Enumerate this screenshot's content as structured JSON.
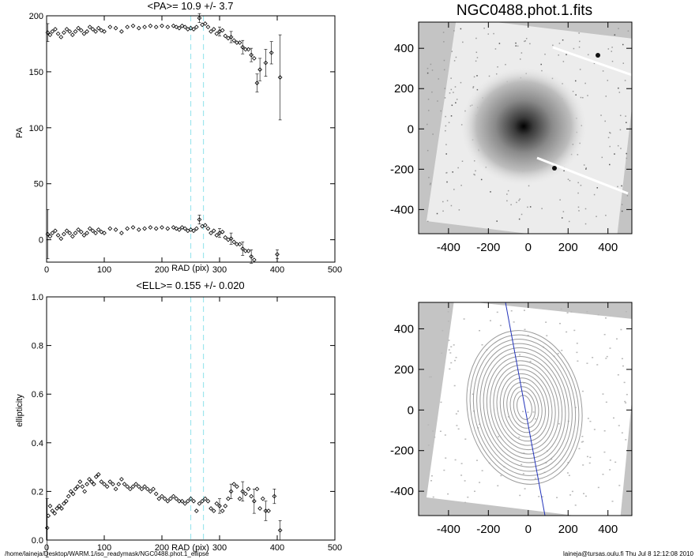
{
  "chart_data": [
    {
      "type": "scatter",
      "panel": "pa-profile",
      "title": "<PA>=  10.9 +/-   3.7",
      "xlabel": "RAD (pix)",
      "ylabel": "PA",
      "xlim": [
        0,
        500
      ],
      "ylim": [
        -20,
        200
      ],
      "xticks": [
        0,
        100,
        200,
        300,
        400,
        500
      ],
      "yticks": [
        0,
        50,
        100,
        150,
        200
      ],
      "reference_lines_x": [
        250,
        272
      ],
      "series": [
        {
          "points": [
            [
              2,
              185
            ],
            [
              6,
              183
            ],
            [
              10,
              186
            ],
            [
              15,
              188
            ],
            [
              20,
              184
            ],
            [
              25,
              181
            ],
            [
              30,
              185
            ],
            [
              35,
              188
            ],
            [
              40,
              186
            ],
            [
              45,
              183
            ],
            [
              50,
              186
            ],
            [
              55,
              189
            ],
            [
              60,
              187
            ],
            [
              65,
              184
            ],
            [
              70,
              186
            ],
            [
              75,
              190
            ],
            [
              80,
              188
            ],
            [
              85,
              186
            ],
            [
              90,
              189
            ],
            [
              95,
              187
            ],
            [
              100,
              186
            ],
            [
              110,
              190
            ],
            [
              120,
              189
            ],
            [
              130,
              186
            ],
            [
              140,
              190
            ],
            [
              150,
              191
            ],
            [
              160,
              189
            ],
            [
              170,
              190
            ],
            [
              180,
              191
            ],
            [
              190,
              190
            ],
            [
              200,
              191
            ],
            [
              210,
              190
            ],
            [
              220,
              191
            ],
            [
              225,
              190
            ],
            [
              230,
              189
            ],
            [
              235,
              191
            ],
            [
              240,
              190
            ],
            [
              245,
              188
            ],
            [
              250,
              189
            ],
            [
              255,
              188
            ],
            [
              260,
              190
            ],
            [
              265,
              198
            ],
            [
              270,
              192
            ],
            [
              275,
              193
            ],
            [
              280,
              190
            ],
            [
              285,
              186
            ],
            [
              290,
              188
            ],
            [
              295,
              184
            ],
            [
              300,
              186
            ],
            [
              305,
              187
            ],
            [
              310,
              182
            ],
            [
              315,
              180
            ],
            [
              320,
              181
            ],
            [
              325,
              178
            ],
            [
              330,
              176
            ],
            [
              335,
              176
            ],
            [
              340,
              172
            ],
            [
              345,
              170
            ],
            [
              350,
              170
            ],
            [
              355,
              165
            ],
            [
              360,
              162
            ],
            [
              365,
              140
            ],
            [
              370,
              152
            ],
            [
              380,
              158
            ],
            [
              390,
              167
            ],
            [
              405,
              145
            ]
          ],
          "error": [
            [
              2,
              8
            ],
            [
              265,
              4
            ],
            [
              300,
              4
            ],
            [
              320,
              5
            ],
            [
              340,
              6
            ],
            [
              355,
              6
            ],
            [
              365,
              8
            ],
            [
              370,
              10
            ],
            [
              380,
              12
            ],
            [
              390,
              10
            ],
            [
              405,
              38
            ]
          ]
        },
        {
          "points": [
            [
              2,
              5
            ],
            [
              6,
              3
            ],
            [
              10,
              6
            ],
            [
              15,
              8
            ],
            [
              20,
              4
            ],
            [
              25,
              1
            ],
            [
              30,
              5
            ],
            [
              35,
              8
            ],
            [
              40,
              6
            ],
            [
              45,
              3
            ],
            [
              50,
              6
            ],
            [
              55,
              9
            ],
            [
              60,
              7
            ],
            [
              65,
              4
            ],
            [
              70,
              6
            ],
            [
              75,
              10
            ],
            [
              80,
              8
            ],
            [
              85,
              6
            ],
            [
              90,
              9
            ],
            [
              95,
              7
            ],
            [
              100,
              6
            ],
            [
              110,
              10
            ],
            [
              120,
              9
            ],
            [
              130,
              6
            ],
            [
              140,
              10
            ],
            [
              150,
              11
            ],
            [
              160,
              9
            ],
            [
              170,
              10
            ],
            [
              180,
              11
            ],
            [
              190,
              10
            ],
            [
              200,
              11
            ],
            [
              210,
              10
            ],
            [
              220,
              11
            ],
            [
              225,
              10
            ],
            [
              230,
              9
            ],
            [
              235,
              11
            ],
            [
              240,
              10
            ],
            [
              245,
              8
            ],
            [
              250,
              9
            ],
            [
              255,
              8
            ],
            [
              260,
              10
            ],
            [
              265,
              18
            ],
            [
              270,
              12
            ],
            [
              275,
              13
            ],
            [
              280,
              10
            ],
            [
              285,
              6
            ],
            [
              290,
              8
            ],
            [
              295,
              4
            ],
            [
              300,
              6
            ],
            [
              305,
              7
            ],
            [
              310,
              2
            ],
            [
              315,
              0
            ],
            [
              320,
              1
            ],
            [
              325,
              -2
            ],
            [
              330,
              -4
            ],
            [
              335,
              -4
            ],
            [
              340,
              -8
            ],
            [
              345,
              -10
            ],
            [
              350,
              -10
            ],
            [
              355,
              -15
            ],
            [
              360,
              -18
            ],
            [
              400,
              -13
            ]
          ],
          "error": [
            [
              2,
              22
            ],
            [
              265,
              4
            ],
            [
              300,
              4
            ],
            [
              320,
              5
            ],
            [
              340,
              6
            ],
            [
              355,
              6
            ],
            [
              400,
              4
            ]
          ]
        }
      ]
    },
    {
      "type": "scatter",
      "panel": "ellipticity-profile",
      "title": "<ELL>= 0.155 +/-  0.020",
      "xlabel": "RAD (pix)",
      "ylabel": "ellipticity",
      "xlim": [
        0,
        500
      ],
      "ylim": [
        0.0,
        1.0
      ],
      "xticks": [
        0,
        100,
        200,
        300,
        400,
        500
      ],
      "yticks": [
        "0.0",
        "0.2",
        "0.4",
        "0.6",
        "0.8",
        "1.0"
      ],
      "reference_lines_x": [
        250,
        272
      ],
      "series": [
        {
          "points": [
            [
              1,
              0.05
            ],
            [
              3,
              0.1
            ],
            [
              6,
              0.14
            ],
            [
              10,
              0.12
            ],
            [
              14,
              0.11
            ],
            [
              18,
              0.13
            ],
            [
              22,
              0.14
            ],
            [
              26,
              0.13
            ],
            [
              30,
              0.15
            ],
            [
              34,
              0.16
            ],
            [
              38,
              0.18
            ],
            [
              42,
              0.2
            ],
            [
              46,
              0.19
            ],
            [
              50,
              0.21
            ],
            [
              54,
              0.22
            ],
            [
              58,
              0.24
            ],
            [
              62,
              0.22
            ],
            [
              66,
              0.2
            ],
            [
              70,
              0.23
            ],
            [
              74,
              0.25
            ],
            [
              78,
              0.24
            ],
            [
              82,
              0.23
            ],
            [
              86,
              0.26
            ],
            [
              90,
              0.27
            ],
            [
              95,
              0.24
            ],
            [
              100,
              0.23
            ],
            [
              105,
              0.22
            ],
            [
              110,
              0.24
            ],
            [
              115,
              0.23
            ],
            [
              120,
              0.21
            ],
            [
              125,
              0.23
            ],
            [
              130,
              0.25
            ],
            [
              135,
              0.23
            ],
            [
              140,
              0.22
            ],
            [
              145,
              0.21
            ],
            [
              150,
              0.22
            ],
            [
              155,
              0.23
            ],
            [
              160,
              0.22
            ],
            [
              165,
              0.21
            ],
            [
              170,
              0.22
            ],
            [
              175,
              0.21
            ],
            [
              180,
              0.2
            ],
            [
              185,
              0.21
            ],
            [
              190,
              0.19
            ],
            [
              195,
              0.17
            ],
            [
              200,
              0.18
            ],
            [
              205,
              0.17
            ],
            [
              210,
              0.16
            ],
            [
              215,
              0.17
            ],
            [
              220,
              0.18
            ],
            [
              225,
              0.17
            ],
            [
              230,
              0.16
            ],
            [
              235,
              0.16
            ],
            [
              240,
              0.15
            ],
            [
              245,
              0.16
            ],
            [
              250,
              0.17
            ],
            [
              255,
              0.16
            ],
            [
              260,
              0.12
            ],
            [
              265,
              0.15
            ],
            [
              270,
              0.16
            ],
            [
              275,
              0.17
            ],
            [
              280,
              0.16
            ],
            [
              285,
              0.13
            ],
            [
              290,
              0.12
            ],
            [
              295,
              0.15
            ],
            [
              300,
              0.14
            ],
            [
              305,
              0.12
            ],
            [
              310,
              0.14
            ],
            [
              315,
              0.17
            ],
            [
              320,
              0.2
            ],
            [
              325,
              0.23
            ],
            [
              330,
              0.22
            ],
            [
              335,
              0.17
            ],
            [
              340,
              0.2
            ],
            [
              345,
              0.19
            ],
            [
              350,
              0.21
            ],
            [
              355,
              0.18
            ],
            [
              360,
              0.16
            ],
            [
              365,
              0.21
            ],
            [
              370,
              0.13
            ],
            [
              375,
              0.17
            ],
            [
              380,
              0.12
            ],
            [
              385,
              0.12
            ],
            [
              395,
              0.18
            ],
            [
              405,
              0.04
            ]
          ],
          "error": [
            [
              1,
              0.12
            ],
            [
              300,
              0.03
            ],
            [
              320,
              0.03
            ],
            [
              340,
              0.04
            ],
            [
              360,
              0.05
            ],
            [
              380,
              0.04
            ],
            [
              395,
              0.03
            ],
            [
              405,
              0.04
            ]
          ]
        }
      ]
    },
    {
      "type": "heatmap",
      "panel": "galaxy-image",
      "title": "NGC0488.phot.1.fits",
      "xlim": [
        -550,
        520
      ],
      "ylim": [
        -520,
        530
      ],
      "xticks": [
        "-400",
        "-200",
        "0",
        "200",
        "400"
      ],
      "yticks": [
        "400",
        "200",
        "0",
        "-200",
        "-400"
      ],
      "colormap": "inverted-gray"
    },
    {
      "type": "heatmap",
      "panel": "isophote-overlay",
      "title": "",
      "xlim": [
        -550,
        520
      ],
      "ylim": [
        -520,
        530
      ],
      "xticks": [
        "-400",
        "-200",
        "0",
        "200",
        "400"
      ],
      "yticks": [
        "400",
        "200",
        "0",
        "-200",
        "-400"
      ],
      "overlay": "fitted isophote ellipses and position-angle line"
    }
  ],
  "footer": {
    "path": "/home/laineja/Desktop/WARM.1/iso_readymask/NGC0488.phot.1_ellipse",
    "stamp": "laineja@tursas.oulu.fi  Thu Jul  8 12:12:08 2010"
  },
  "colors": {
    "reference_line": "#9ee6ee",
    "pa_line": "#2233bb",
    "image_background": "#c4c4c4"
  }
}
